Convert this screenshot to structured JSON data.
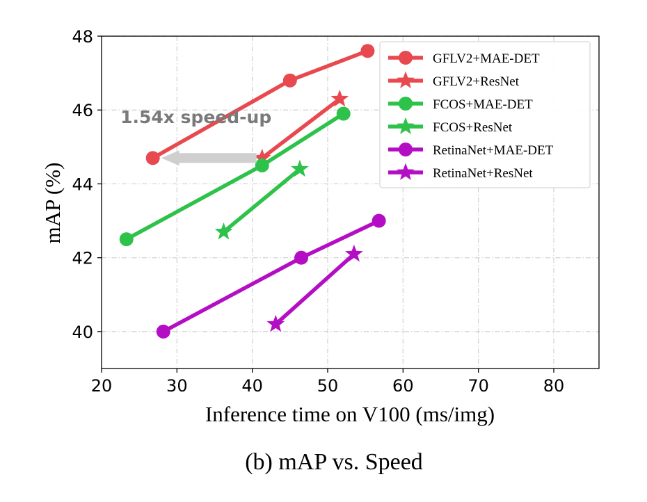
{
  "chart_data": {
    "type": "line",
    "caption": "(b) mAP vs. Speed",
    "xlabel": "Inference time on V100 (ms/img)",
    "ylabel": "mAP (%)",
    "xlim": [
      20,
      86
    ],
    "ylim": [
      39,
      48
    ],
    "xticks": [
      20,
      30,
      40,
      50,
      60,
      70,
      80
    ],
    "yticks": [
      40,
      42,
      44,
      46,
      48
    ],
    "grid": true,
    "legend_position": "top-right",
    "series": [
      {
        "name": "GFLV2+MAE-DET",
        "color": "#e8494f",
        "marker": "circle",
        "x": [
          26.8,
          45.0,
          55.3
        ],
        "y": [
          44.7,
          46.8,
          47.6
        ]
      },
      {
        "name": "GFLV2+ResNet",
        "color": "#e8494f",
        "marker": "star",
        "x": [
          41.3,
          51.6
        ],
        "y": [
          44.7,
          46.3
        ]
      },
      {
        "name": "FCOS+MAE-DET",
        "color": "#2ec24a",
        "marker": "circle",
        "x": [
          23.3,
          41.3,
          52.1
        ],
        "y": [
          42.5,
          44.5,
          45.9
        ]
      },
      {
        "name": "FCOS+ResNet",
        "color": "#2ec24a",
        "marker": "star",
        "x": [
          36.2,
          46.3
        ],
        "y": [
          42.7,
          44.4
        ]
      },
      {
        "name": "RetinaNet+MAE-DET",
        "color": "#b40ec4",
        "marker": "circle",
        "x": [
          28.2,
          46.5,
          56.8
        ],
        "y": [
          40.0,
          42.0,
          43.0
        ]
      },
      {
        "name": "RetinaNet+ResNet",
        "color": "#b40ec4",
        "marker": "star",
        "x": [
          43.1,
          53.5
        ],
        "y": [
          40.2,
          42.1
        ]
      }
    ],
    "annotations": [
      {
        "text": "1.54x speed-up",
        "arrow_from": [
          41.3,
          44.7
        ],
        "arrow_to": [
          26.8,
          44.7
        ],
        "text_at": [
          22.5,
          45.8
        ],
        "color": "#7a7a7a"
      }
    ]
  }
}
